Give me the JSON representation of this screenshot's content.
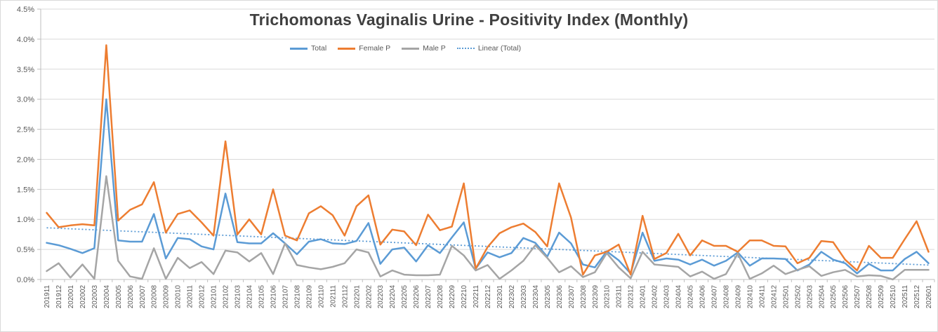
{
  "title": "Trichomonas Vaginalis Urine - Positivity Index (Monthly)",
  "colors": {
    "total": "#5B9BD5",
    "female": "#ED7D31",
    "male": "#A5A5A5",
    "trend": "#5B9BD5",
    "grid": "#D9D9D9",
    "axis_line": "#BFBFBF",
    "axis_text": "#595959",
    "title_text": "#404040",
    "border": "#D9D9D9"
  },
  "chart_data": {
    "type": "line",
    "title": "Trichomonas Vaginalis Urine - Positivity Index (Monthly)",
    "xlabel": "",
    "ylabel": "",
    "ylim": [
      0,
      4.5
    ],
    "ytick_step": 0.5,
    "ytick_labels": [
      "0.0%",
      "0.5%",
      "1.0%",
      "1.5%",
      "2.0%",
      "2.5%",
      "3.0%",
      "3.5%",
      "4.0%",
      "4.5%"
    ],
    "grid": true,
    "legend_position": "top-center",
    "categories": [
      "201911",
      "201912",
      "202001",
      "202002",
      "202003",
      "202004",
      "202005",
      "202006",
      "202007",
      "202008",
      "202009",
      "202010",
      "202011",
      "202012",
      "202101",
      "202102",
      "202103",
      "202104",
      "202105",
      "202106",
      "202107",
      "202108",
      "202109",
      "202110",
      "202111",
      "202112",
      "202201",
      "202202",
      "202203",
      "202204",
      "202205",
      "202206",
      "202207",
      "202208",
      "202209",
      "202210",
      "202211",
      "202212",
      "202301",
      "202302",
      "202303",
      "202304",
      "202305",
      "202306",
      "202307",
      "202308",
      "202309",
      "202310",
      "202311",
      "202312",
      "202401",
      "202402",
      "202403",
      "202404",
      "202405",
      "202406",
      "202407",
      "202408",
      "202409",
      "202410",
      "202411",
      "202412",
      "202501",
      "202502",
      "202503",
      "202504",
      "202505",
      "202506",
      "202507",
      "202508",
      "202509",
      "202510",
      "202511",
      "202512",
      "202601"
    ],
    "series": [
      {
        "name": "Total",
        "color": "#5B9BD5",
        "style": "solid",
        "values": [
          0.61,
          0.57,
          0.51,
          0.44,
          0.52,
          3.0,
          0.65,
          0.63,
          0.63,
          1.09,
          0.35,
          0.69,
          0.67,
          0.55,
          0.5,
          1.43,
          0.62,
          0.6,
          0.6,
          0.77,
          0.6,
          0.42,
          0.63,
          0.67,
          0.6,
          0.59,
          0.64,
          0.94,
          0.26,
          0.5,
          0.53,
          0.3,
          0.57,
          0.44,
          0.7,
          0.95,
          0.18,
          0.45,
          0.37,
          0.44,
          0.69,
          0.61,
          0.38,
          0.78,
          0.6,
          0.25,
          0.2,
          0.47,
          0.32,
          0.1,
          0.78,
          0.31,
          0.35,
          0.33,
          0.25,
          0.33,
          0.23,
          0.31,
          0.45,
          0.23,
          0.35,
          0.35,
          0.34,
          0.15,
          0.25,
          0.46,
          0.33,
          0.27,
          0.1,
          0.26,
          0.15,
          0.15,
          0.34,
          0.46,
          0.27
        ]
      },
      {
        "name": "Female P",
        "color": "#ED7D31",
        "style": "solid",
        "values": [
          1.11,
          0.87,
          0.9,
          0.92,
          0.9,
          3.9,
          0.98,
          1.16,
          1.25,
          1.62,
          0.78,
          1.09,
          1.15,
          0.95,
          0.73,
          2.3,
          0.75,
          1.0,
          0.75,
          1.5,
          0.73,
          0.65,
          1.1,
          1.22,
          1.07,
          0.73,
          1.22,
          1.4,
          0.58,
          0.83,
          0.8,
          0.57,
          1.08,
          0.82,
          0.88,
          1.6,
          0.18,
          0.54,
          0.77,
          0.87,
          0.93,
          0.79,
          0.55,
          1.6,
          1.03,
          0.08,
          0.4,
          0.46,
          0.58,
          0.08,
          1.06,
          0.34,
          0.44,
          0.76,
          0.4,
          0.65,
          0.56,
          0.56,
          0.46,
          0.65,
          0.65,
          0.56,
          0.55,
          0.27,
          0.36,
          0.64,
          0.62,
          0.33,
          0.15,
          0.56,
          0.36,
          0.36,
          0.67,
          0.97,
          0.46
        ]
      },
      {
        "name": "Male P",
        "color": "#A5A5A5",
        "style": "solid",
        "values": [
          0.14,
          0.27,
          0.03,
          0.25,
          0.01,
          1.72,
          0.31,
          0.05,
          0.01,
          0.52,
          0.01,
          0.36,
          0.19,
          0.29,
          0.09,
          0.48,
          0.45,
          0.3,
          0.44,
          0.09,
          0.6,
          0.24,
          0.2,
          0.17,
          0.21,
          0.27,
          0.5,
          0.45,
          0.05,
          0.15,
          0.08,
          0.07,
          0.07,
          0.08,
          0.56,
          0.4,
          0.15,
          0.24,
          0.01,
          0.15,
          0.31,
          0.57,
          0.36,
          0.12,
          0.22,
          0.04,
          0.12,
          0.44,
          0.2,
          0.02,
          0.46,
          0.25,
          0.23,
          0.21,
          0.05,
          0.13,
          0.01,
          0.09,
          0.43,
          0.01,
          0.1,
          0.23,
          0.09,
          0.16,
          0.22,
          0.06,
          0.12,
          0.16,
          0.05,
          0.07,
          0.06,
          0.0,
          0.16,
          0.16,
          0.16
        ]
      },
      {
        "name": "Linear (Total)",
        "color": "#5B9BD5",
        "style": "dotted",
        "trend_endpoints": [
          0.86,
          0.24
        ]
      }
    ]
  }
}
